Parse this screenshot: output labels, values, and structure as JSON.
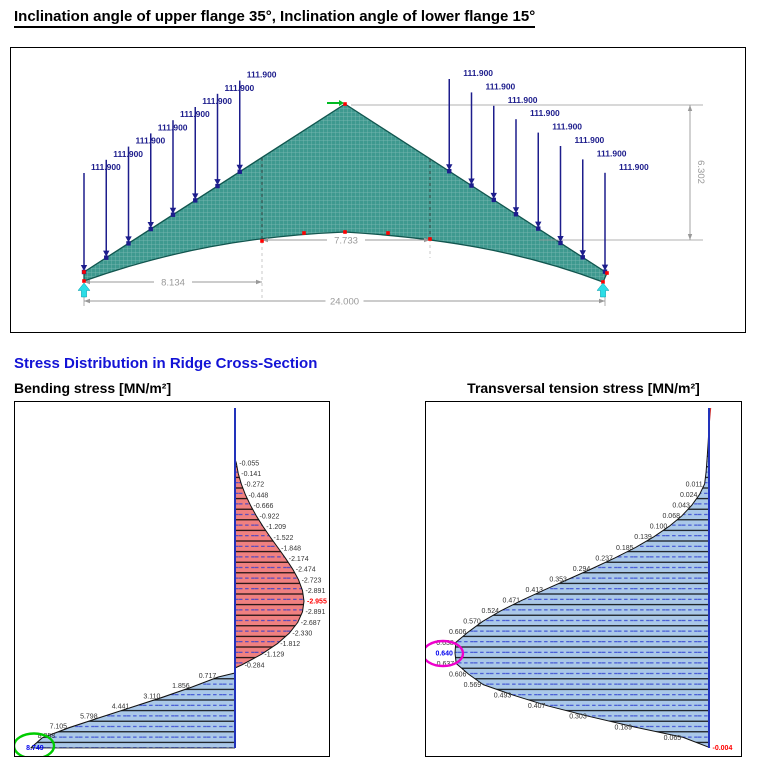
{
  "title": "Inclination angle of upper flange 35°, Inclination angle of lower flange 15°",
  "section_heading": "Stress Distribution in Ridge Cross-Section",
  "truss": {
    "load_label": "111.900",
    "left_load_count": 8,
    "right_load_count": 8,
    "dimensions": {
      "span_left": "8.134",
      "span_mid": "7.733",
      "span_total": "24.000",
      "height_right": "6.302"
    }
  },
  "bending": {
    "title": "Bending stress [MN/m²]",
    "negative_values": [
      "-0.055",
      "-0.141",
      "-0.272",
      "-0.448",
      "-0.666",
      "-0.922",
      "-1.209",
      "-1.522",
      "-1.848",
      "-2.174",
      "-2.474",
      "-2.723",
      "-2.891",
      "-2.955",
      "-2.891",
      "-2.687",
      "-2.330",
      "-1.812",
      "-1.129",
      "-0.284"
    ],
    "peak_negative_index": 13,
    "peak_negative": "-2.955",
    "positive_values": [
      "0.717",
      "1.856",
      "3.110",
      "4.441",
      "5.798",
      "7.105",
      "8.258",
      "8.749"
    ],
    "max_positive": "8.749"
  },
  "transversal": {
    "title": "Transversal tension stress [MN/m²]",
    "values": [
      "0.011",
      "0.024",
      "0.043",
      "0.068",
      "0.100",
      "0.139",
      "0.185",
      "0.237",
      "0.294",
      "0.353",
      "0.413",
      "0.471",
      "0.524",
      "0.570",
      "0.606",
      "0.638",
      "0.640",
      "0.637",
      "0.606",
      "0.569",
      "0.493",
      "0.407",
      "0.303",
      "0.189",
      "0.065",
      "-0.004"
    ],
    "peak_index": 16,
    "peak": "0.640",
    "min": "-0.004"
  },
  "colors": {
    "load": "#1d1d8c",
    "mesh_fill": "#3E998F",
    "mesh_edge": "#11564F",
    "dimension": "#999999",
    "heading_blue": "#1313D6",
    "red_fill": "#F08080",
    "blue_fill": "#AAC8E8",
    "axis_blue": "#2233BB",
    "hatch_black": "#000000",
    "hatch_blue": "#2A3BD0",
    "peak_red": "#FF0000",
    "peak_blue": "#0000EE",
    "circle_green": "#00CC00",
    "circle_magenta": "#EE00CC",
    "support_cyan": "#2BDDE6",
    "node_red": "#FF0000",
    "apex_green": "#00BB22"
  }
}
